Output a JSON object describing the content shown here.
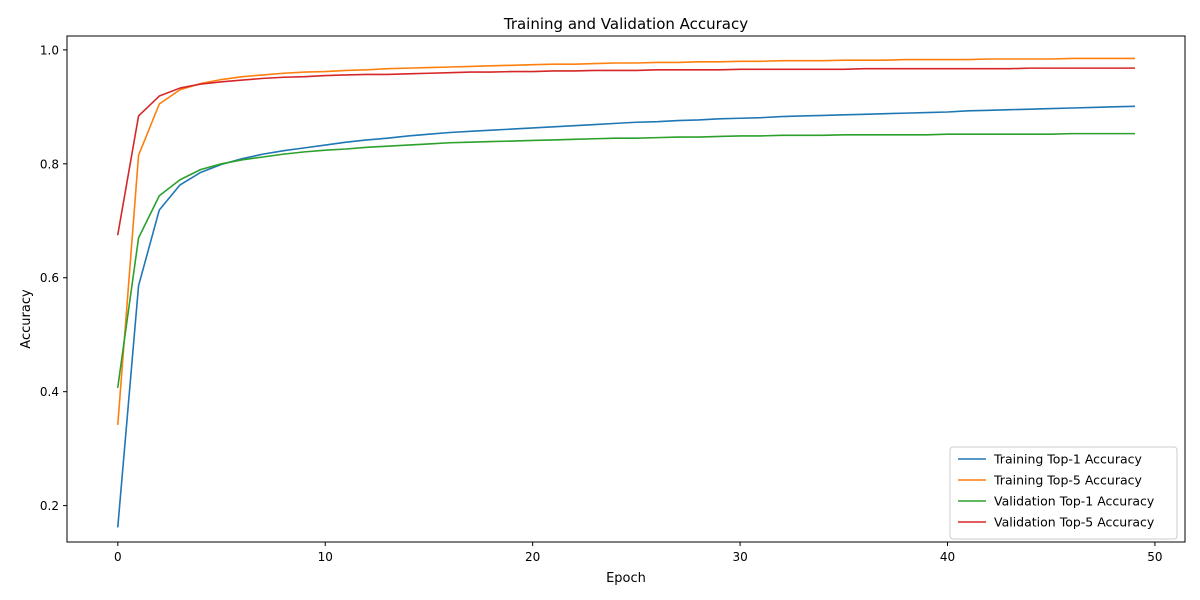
{
  "chart_data": {
    "type": "line",
    "title": "Training and Validation Accuracy",
    "xlabel": "Epoch",
    "ylabel": "Accuracy",
    "xlim": [
      -2.45,
      51.45
    ],
    "ylim": [
      0.1361,
      1.0244
    ],
    "xticks": [
      0,
      10,
      20,
      30,
      40,
      50
    ],
    "yticks": [
      0.2,
      0.4,
      0.6,
      0.8,
      1.0
    ],
    "xtick_labels": [
      "0",
      "10",
      "20",
      "30",
      "40",
      "50"
    ],
    "ytick_labels": [
      "0.2",
      "0.4",
      "0.6",
      "0.8",
      "1.0"
    ],
    "grid": false,
    "legend_position": "lower-right",
    "x": [
      0,
      1,
      2,
      3,
      4,
      5,
      6,
      7,
      8,
      9,
      10,
      11,
      12,
      13,
      14,
      15,
      16,
      17,
      18,
      19,
      20,
      21,
      22,
      23,
      24,
      25,
      26,
      27,
      28,
      29,
      30,
      31,
      32,
      33,
      34,
      35,
      36,
      37,
      38,
      39,
      40,
      41,
      42,
      43,
      44,
      45,
      46,
      47,
      48,
      49
    ],
    "series": [
      {
        "name": "Training Top-1 Accuracy",
        "color": "#1f77b4",
        "values": [
          0.163,
          0.586,
          0.719,
          0.763,
          0.785,
          0.799,
          0.809,
          0.817,
          0.823,
          0.828,
          0.833,
          0.838,
          0.842,
          0.845,
          0.849,
          0.852,
          0.855,
          0.857,
          0.859,
          0.861,
          0.863,
          0.865,
          0.867,
          0.869,
          0.871,
          0.873,
          0.874,
          0.876,
          0.877,
          0.879,
          0.88,
          0.881,
          0.883,
          0.884,
          0.885,
          0.886,
          0.887,
          0.888,
          0.889,
          0.89,
          0.891,
          0.893,
          0.894,
          0.895,
          0.896,
          0.897,
          0.898,
          0.899,
          0.9,
          0.901
        ]
      },
      {
        "name": "Training Top-5 Accuracy",
        "color": "#ff7f0e",
        "values": [
          0.343,
          0.815,
          0.905,
          0.93,
          0.941,
          0.948,
          0.953,
          0.956,
          0.959,
          0.961,
          0.962,
          0.964,
          0.965,
          0.967,
          0.968,
          0.969,
          0.97,
          0.971,
          0.972,
          0.973,
          0.974,
          0.975,
          0.975,
          0.976,
          0.977,
          0.977,
          0.978,
          0.978,
          0.979,
          0.979,
          0.98,
          0.98,
          0.981,
          0.981,
          0.981,
          0.982,
          0.982,
          0.982,
          0.983,
          0.983,
          0.983,
          0.983,
          0.984,
          0.984,
          0.984,
          0.984,
          0.985,
          0.985,
          0.985,
          0.985
        ]
      },
      {
        "name": "Validation Top-1 Accuracy",
        "color": "#2ca02c",
        "values": [
          0.408,
          0.67,
          0.744,
          0.772,
          0.79,
          0.8,
          0.807,
          0.812,
          0.817,
          0.821,
          0.824,
          0.826,
          0.829,
          0.831,
          0.833,
          0.835,
          0.837,
          0.838,
          0.839,
          0.84,
          0.841,
          0.842,
          0.843,
          0.844,
          0.845,
          0.845,
          0.846,
          0.847,
          0.847,
          0.848,
          0.849,
          0.849,
          0.85,
          0.85,
          0.85,
          0.851,
          0.851,
          0.851,
          0.851,
          0.851,
          0.852,
          0.852,
          0.852,
          0.852,
          0.852,
          0.852,
          0.853,
          0.853,
          0.853,
          0.853
        ]
      },
      {
        "name": "Validation Top-5 Accuracy",
        "color": "#d62728",
        "values": [
          0.676,
          0.884,
          0.919,
          0.933,
          0.94,
          0.944,
          0.947,
          0.95,
          0.952,
          0.953,
          0.955,
          0.956,
          0.957,
          0.957,
          0.958,
          0.959,
          0.96,
          0.961,
          0.961,
          0.962,
          0.962,
          0.963,
          0.963,
          0.964,
          0.964,
          0.964,
          0.965,
          0.965,
          0.965,
          0.965,
          0.966,
          0.966,
          0.966,
          0.966,
          0.966,
          0.966,
          0.967,
          0.967,
          0.967,
          0.967,
          0.967,
          0.967,
          0.967,
          0.967,
          0.968,
          0.968,
          0.968,
          0.968,
          0.968,
          0.968
        ]
      }
    ]
  }
}
